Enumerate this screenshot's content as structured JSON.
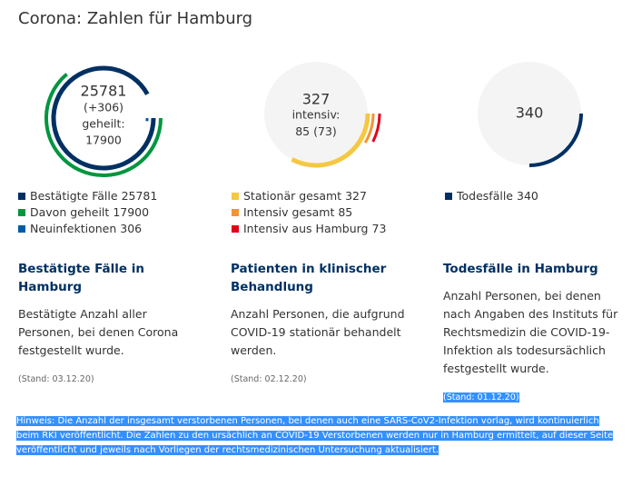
{
  "title": "Corona: Zahlen für Hamburg",
  "chart_data": [
    {
      "type": "radial",
      "rlim": [
        0,
        28000
      ],
      "center_label": "geheilt:",
      "series": [
        {
          "name": "Bestätigte Fälle",
          "color": "#003063",
          "values": [
            25781
          ]
        },
        {
          "name": "Davon geheilt",
          "color": "#00963f",
          "values": [
            17900
          ]
        },
        {
          "name": "Neuinfektionen",
          "color": "#005ca9",
          "values": [
            306
          ],
          "value_labels": [
            "(+306)"
          ]
        }
      ]
    },
    {
      "type": "radial",
      "rlim": [
        0,
        1000
      ],
      "center_label": "intensiv:",
      "backdrop": "#f4f4f4",
      "series": [
        {
          "name": "Stationär gesamt",
          "color": "#f5c842",
          "values": [
            327
          ]
        },
        {
          "name": "Intensiv gesamt",
          "color": "#f39434",
          "values": [
            85
          ]
        },
        {
          "name": "Intensiv aus Hamburg",
          "color": "#e2001a",
          "values": [
            73
          ],
          "value_labels": [
            "(73)"
          ]
        }
      ]
    },
    {
      "type": "radial",
      "rlim": [
        0,
        1360
      ],
      "backdrop": "#f4f4f4",
      "series": [
        {
          "name": "Todesfälle",
          "color": "#003063",
          "values": [
            340
          ]
        }
      ]
    }
  ],
  "panels": [
    {
      "heading": "Bestätigte Fälle in Hamburg",
      "text": "Bestätigte Anzahl aller Personen, bei denen Corona festgestellt wurde.",
      "stand": "(Stand: 03.12.20)"
    },
    {
      "heading": "Patienten in klinischer Behandlung",
      "text": "Anzahl Personen, die aufgrund COVID-19 stationär behandelt werden.",
      "stand": "(Stand: 02.12.20)"
    },
    {
      "heading": "Todesfälle in Hamburg",
      "text": "Anzahl Personen, bei denen nach Angaben des Instituts für Rechtsmedizin die COVID-19-Infektion als todesursächlich festgestellt wurde.",
      "stand": "(Stand: 01.12.20)"
    }
  ],
  "notice": "Hinweis: Die Anzahl der insgesamt verstorbenen Personen, bei denen auch eine SARS-CoV2-Infektion vorlag, wird kontinuierlich beim RKI veröffentlicht. Die Zahlen zu den ursächlich an COVID-19 Verstorbenen werden nur in Hamburg ermittelt, auf dieser Seite veröffentlicht und jeweils nach Vorliegen der rechtsmedizinischen Untersuchung aktualisiert."
}
